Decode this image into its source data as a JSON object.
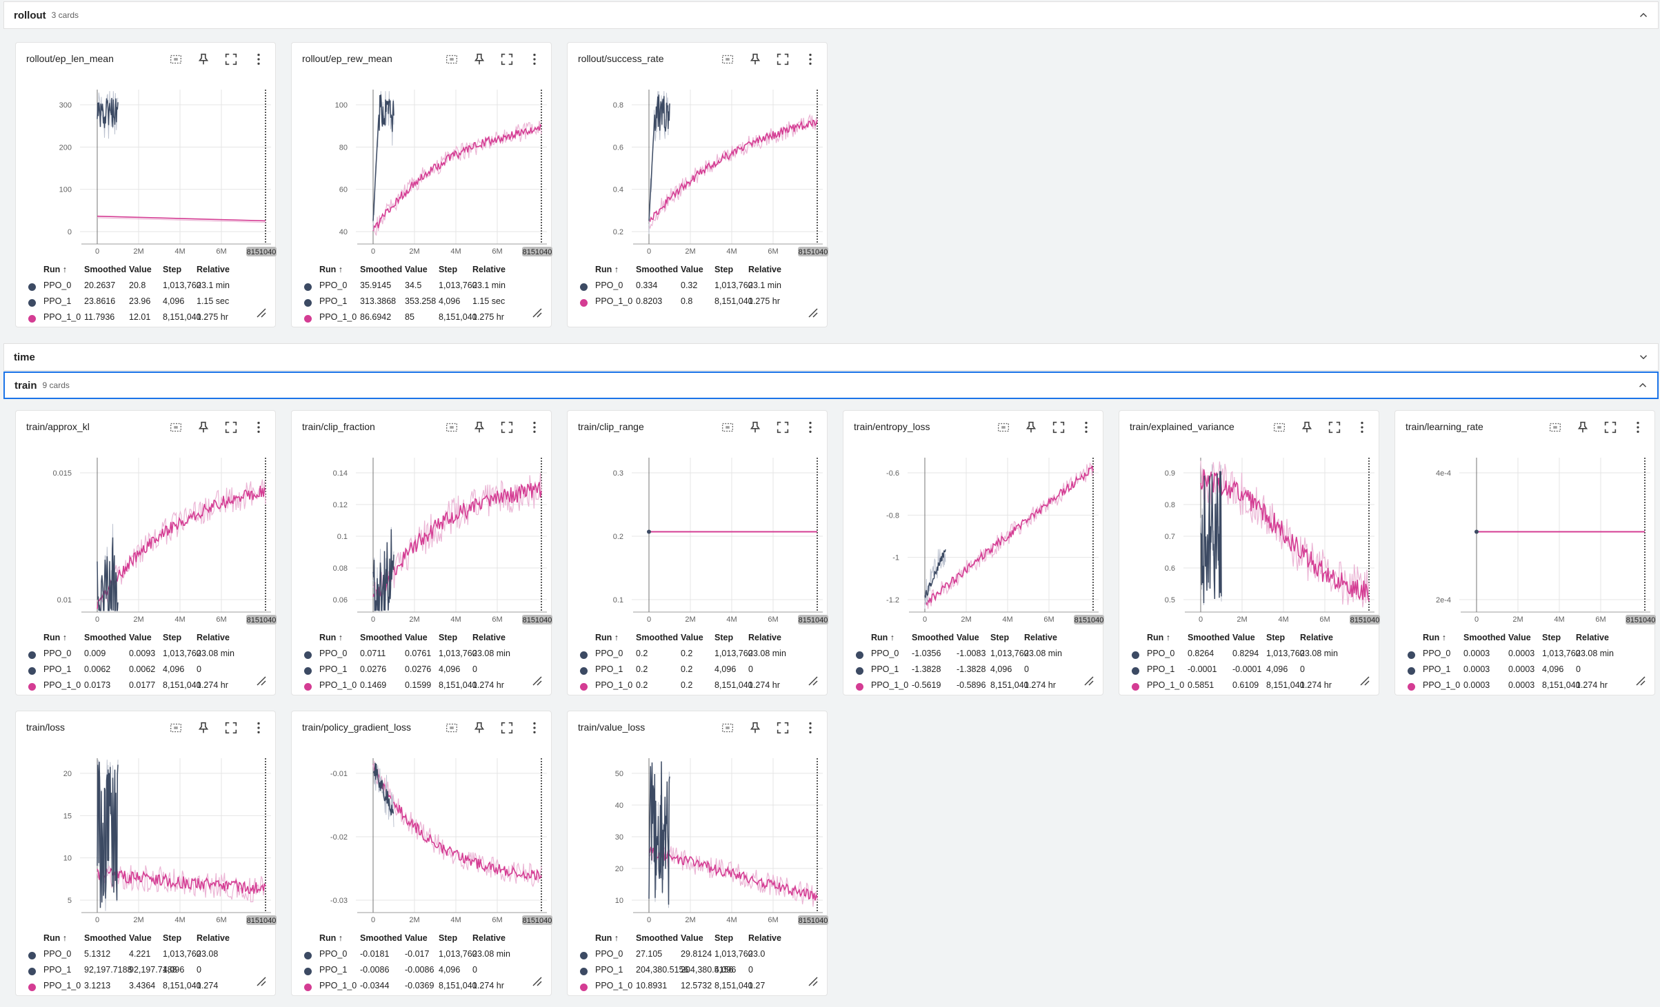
{
  "colors": {
    "PPO_0": "#3c4a63",
    "PPO_1": "#3c4a63",
    "PPO_1_0": "#d43c93",
    "PPO_1_0_light": "#ebb5d5",
    "PPO_0_light": "#bcc2cf",
    "grid": "#e4e4e4"
  },
  "sections": [
    {
      "title": "rollout",
      "count": "3 cards",
      "chevron": "chevron-up-icon"
    },
    {
      "title": "time",
      "count": "",
      "chevron": "chevron-down-icon"
    },
    {
      "title": "train",
      "count": "9 cards",
      "chevron": "chevron-up-icon"
    }
  ],
  "table_headers": {
    "run": "Run ↑",
    "smoothed": "Smoothed",
    "value": "Value",
    "step": "Step",
    "relative": "Relative"
  },
  "x_ticks": [
    "0",
    "2M",
    "4M",
    "6M"
  ],
  "x_end_label": "8151040",
  "icons": [
    "fit-domain-icon",
    "pin-icon",
    "fullscreen-icon",
    "more-vert-icon",
    "resize-handle-icon"
  ],
  "cards": [
    {
      "title": "rollout/ep_len_mean",
      "chart_data": {
        "type": "line",
        "yticks": [
          "300",
          "200",
          "100",
          "0"
        ],
        "xlim": [
          0,
          8151040
        ]
      },
      "rows": [
        [
          "PPO_0",
          "20.2637",
          "20.8",
          "1,013,760",
          "23.1 min"
        ],
        [
          "PPO_1",
          "23.8616",
          "23.96",
          "4,096",
          "1.15 sec"
        ],
        [
          "PPO_1_0",
          "11.7936",
          "12.01",
          "8,151,040",
          "1.275 hr"
        ]
      ]
    },
    {
      "title": "rollout/ep_rew_mean",
      "chart_data": {
        "type": "line",
        "yticks": [
          "100",
          "80",
          "60",
          "40"
        ],
        "xlim": [
          0,
          8151040
        ]
      },
      "rows": [
        [
          "PPO_0",
          "35.9145",
          "34.5",
          "1,013,760",
          "23.1 min"
        ],
        [
          "PPO_1",
          "313.3868",
          "353.258",
          "4,096",
          "1.15 sec"
        ],
        [
          "PPO_1_0",
          "86.6942",
          "85",
          "8,151,040",
          "1.275 hr"
        ]
      ]
    },
    {
      "title": "rollout/success_rate",
      "chart_data": {
        "type": "line",
        "yticks": [
          "0.8",
          "0.6",
          "0.4",
          "0.2"
        ],
        "xlim": [
          0,
          8151040
        ]
      },
      "rows": [
        [
          "PPO_0",
          "0.334",
          "0.32",
          "1,013,760",
          "23.1 min"
        ],
        [
          "PPO_1_0",
          "0.8203",
          "0.8",
          "8,151,040",
          "1.275 hr"
        ]
      ]
    },
    {
      "title": "train/approx_kl",
      "chart_data": {
        "type": "line",
        "yticks": [
          "0.015",
          "0.01"
        ],
        "xlim": [
          0,
          8151040
        ]
      },
      "rows": [
        [
          "PPO_0",
          "0.009",
          "0.0093",
          "1,013,760",
          "23.08 min"
        ],
        [
          "PPO_1",
          "0.0062",
          "0.0062",
          "4,096",
          "0"
        ],
        [
          "PPO_1_0",
          "0.0173",
          "0.0177",
          "8,151,040",
          "1.274 hr"
        ]
      ]
    },
    {
      "title": "train/clip_fraction",
      "chart_data": {
        "type": "line",
        "yticks": [
          "0.14",
          "0.12",
          "0.1",
          "0.08",
          "0.06"
        ],
        "xlim": [
          0,
          8151040
        ]
      },
      "rows": [
        [
          "PPO_0",
          "0.0711",
          "0.0761",
          "1,013,760",
          "23.08 min"
        ],
        [
          "PPO_1",
          "0.0276",
          "0.0276",
          "4,096",
          "0"
        ],
        [
          "PPO_1_0",
          "0.1469",
          "0.1599",
          "8,151,040",
          "1.274 hr"
        ]
      ]
    },
    {
      "title": "train/clip_range",
      "chart_data": {
        "type": "line",
        "yticks": [
          "0.3",
          "0.2",
          "0.1"
        ],
        "xlim": [
          0,
          8151040
        ]
      },
      "rows": [
        [
          "PPO_0",
          "0.2",
          "0.2",
          "1,013,760",
          "23.08 min"
        ],
        [
          "PPO_1",
          "0.2",
          "0.2",
          "4,096",
          "0"
        ],
        [
          "PPO_1_0",
          "0.2",
          "0.2",
          "8,151,040",
          "1.274 hr"
        ]
      ]
    },
    {
      "title": "train/entropy_loss",
      "chart_data": {
        "type": "line",
        "yticks": [
          "-0.6",
          "-0.8",
          "-1",
          "-1.2"
        ],
        "xlim": [
          0,
          8151040
        ]
      },
      "rows": [
        [
          "PPO_0",
          "-1.0356",
          "-1.0083",
          "1,013,760",
          "23.08 min"
        ],
        [
          "PPO_1",
          "-1.3828",
          "-1.3828",
          "4,096",
          "0"
        ],
        [
          "PPO_1_0",
          "-0.5619",
          "-0.5896",
          "8,151,040",
          "1.274 hr"
        ]
      ]
    },
    {
      "title": "train/explained_variance",
      "chart_data": {
        "type": "line",
        "yticks": [
          "0.9",
          "0.8",
          "0.7",
          "0.6",
          "0.5"
        ],
        "xlim": [
          0,
          8151040
        ]
      },
      "rows": [
        [
          "PPO_0",
          "0.8264",
          "0.8294",
          "1,013,760",
          "23.08 min"
        ],
        [
          "PPO_1",
          "-0.0001",
          "-0.0001",
          "4,096",
          "0"
        ],
        [
          "PPO_1_0",
          "0.5851",
          "0.6109",
          "8,151,040",
          "1.274 hr"
        ]
      ]
    },
    {
      "title": "train/learning_rate",
      "chart_data": {
        "type": "line",
        "yticks": [
          "4e-4",
          "2e-4"
        ],
        "xlim": [
          0,
          8151040
        ]
      },
      "rows": [
        [
          "PPO_0",
          "0.0003",
          "0.0003",
          "1,013,760",
          "23.08 min"
        ],
        [
          "PPO_1",
          "0.0003",
          "0.0003",
          "4,096",
          "0"
        ],
        [
          "PPO_1_0",
          "0.0003",
          "0.0003",
          "8,151,040",
          "1.274 hr"
        ]
      ]
    },
    {
      "title": "train/loss",
      "chart_data": {
        "type": "line",
        "yticks": [
          "20",
          "15",
          "10",
          "5"
        ],
        "xlim": [
          0,
          8151040
        ]
      },
      "rows": [
        [
          "PPO_0",
          "5.1312",
          "4.221",
          "1,013,760",
          "23.08"
        ],
        [
          "PPO_1",
          "92,197.7188",
          "92,197.7188",
          "4,096",
          "0"
        ],
        [
          "PPO_1_0",
          "3.1213",
          "3.4364",
          "8,151,040",
          "1.274"
        ]
      ]
    },
    {
      "title": "train/policy_gradient_loss",
      "chart_data": {
        "type": "line",
        "yticks": [
          "-0.01",
          "-0.02",
          "-0.03"
        ],
        "xlim": [
          0,
          8151040
        ]
      },
      "rows": [
        [
          "PPO_0",
          "-0.0181",
          "-0.017",
          "1,013,760",
          "23.08 min"
        ],
        [
          "PPO_1",
          "-0.0086",
          "-0.0086",
          "4,096",
          "0"
        ],
        [
          "PPO_1_0",
          "-0.0344",
          "-0.0369",
          "8,151,040",
          "1.274 hr"
        ]
      ]
    },
    {
      "title": "train/value_loss",
      "chart_data": {
        "type": "line",
        "yticks": [
          "50",
          "40",
          "30",
          "20",
          "10"
        ],
        "xlim": [
          0,
          8151040
        ]
      },
      "rows": [
        [
          "PPO_0",
          "27.105",
          "29.8124",
          "1,013,760",
          "23.0"
        ],
        [
          "PPO_1",
          "204,380.5156",
          "204,380.5156",
          "4,096",
          "0"
        ],
        [
          "PPO_1_0",
          "10.8931",
          "12.5732",
          "8,151,040",
          "1.27"
        ]
      ]
    }
  ]
}
